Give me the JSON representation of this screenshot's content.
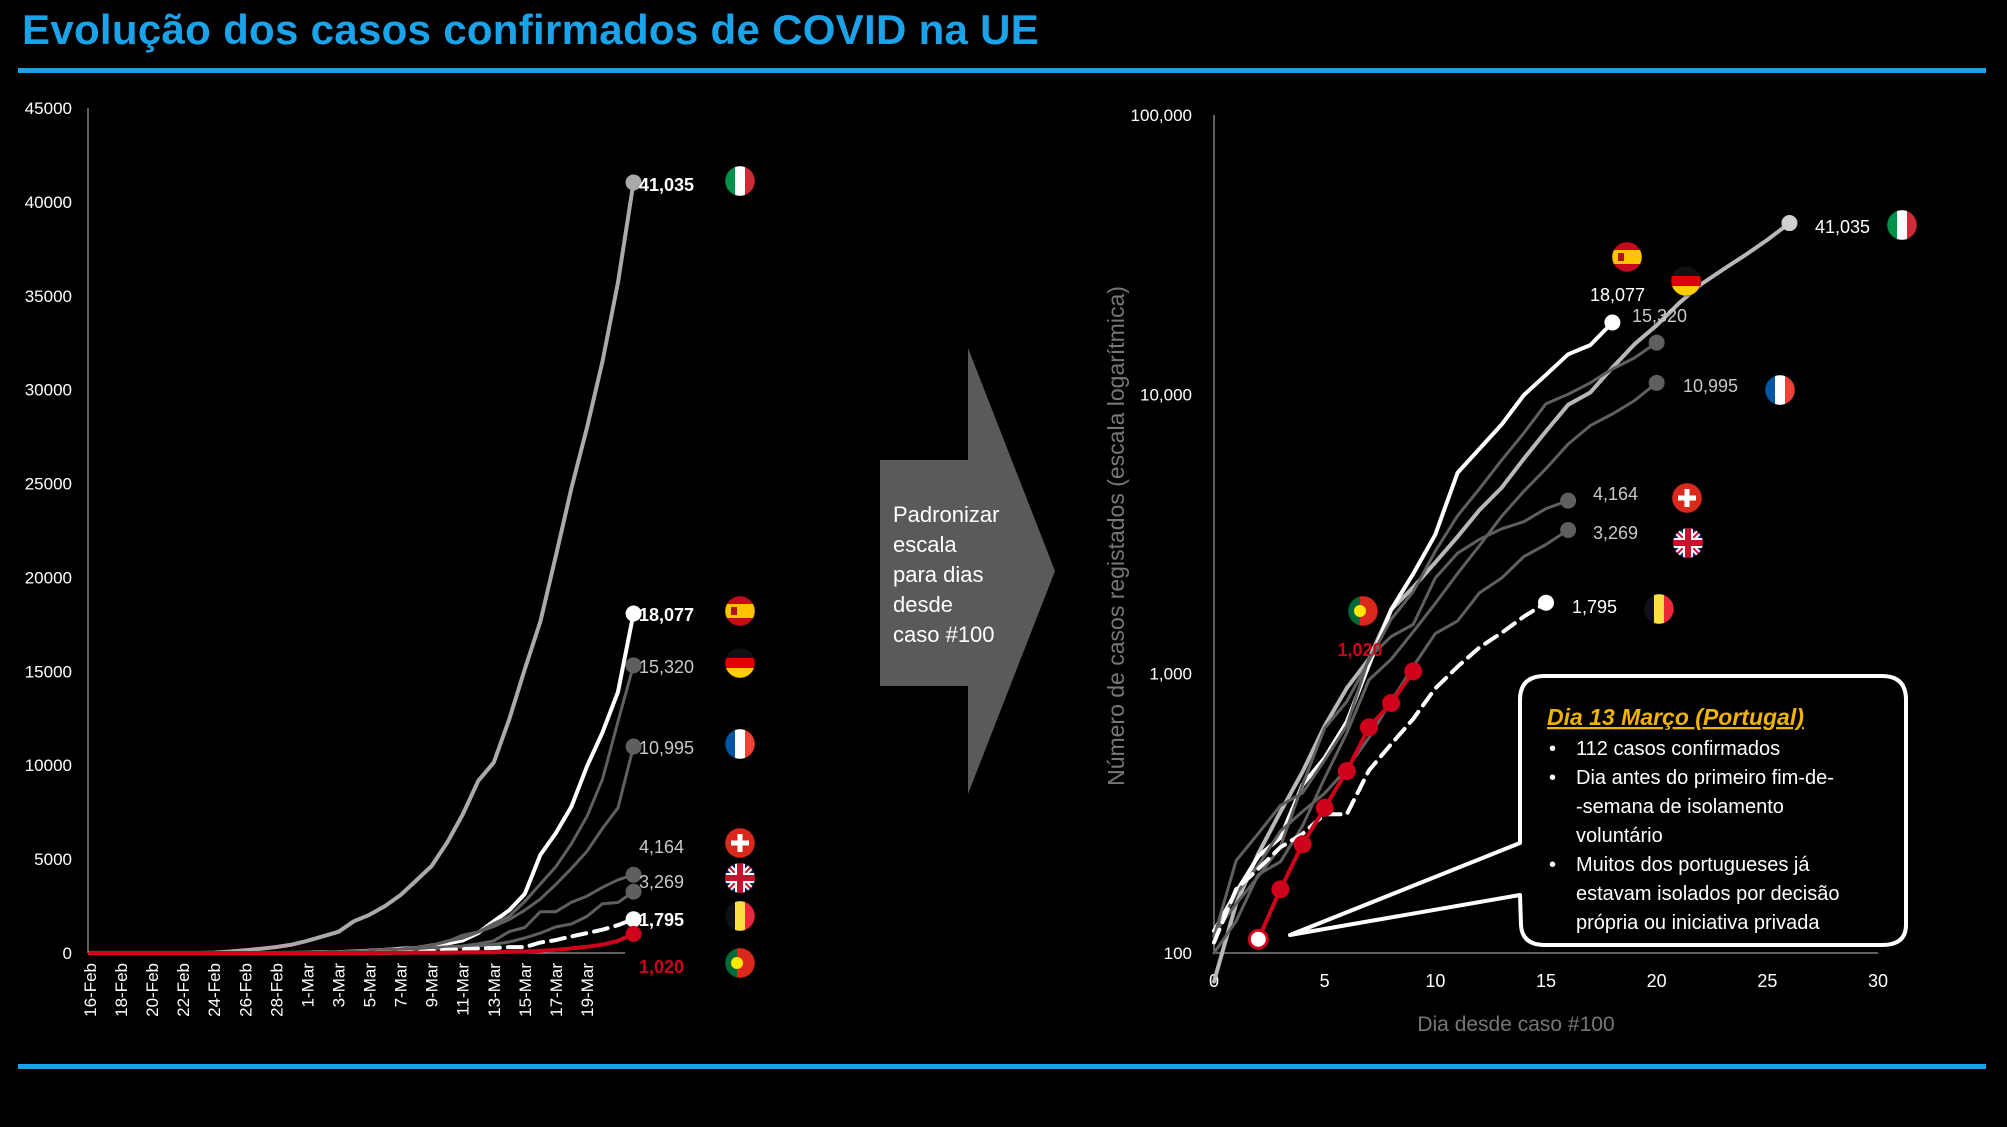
{
  "title": "Evolução dos casos confirmados de COVID na UE",
  "arrow": {
    "lines": [
      "Padronizar",
      "escala",
      "para dias",
      "desde",
      "caso #100"
    ]
  },
  "chart_data": [
    {
      "type": "line",
      "ylim": [
        0,
        45000
      ],
      "yticks": [
        "0",
        "5000",
        "10000",
        "15000",
        "20000",
        "25000",
        "30000",
        "35000",
        "40000",
        "45000"
      ],
      "xticks": [
        "16-Feb",
        "18-Feb",
        "20-Feb",
        "22-Feb",
        "24-Feb",
        "26-Feb",
        "28-Feb",
        "1-Mar",
        "3-Mar",
        "5-Mar",
        "7-Mar",
        "9-Mar",
        "11-Mar",
        "13-Mar",
        "15-Mar",
        "17-Mar",
        "19-Mar"
      ],
      "series": [
        {
          "country": "Italy",
          "flag": "italy-flag",
          "color": "#aaaaaa",
          "label": "41,035",
          "values": [
            3,
            3,
            3,
            3,
            3,
            3,
            3,
            3,
            20,
            79,
            150,
            227,
            320,
            445,
            650,
            888,
            1128,
            1694,
            2036,
            2502,
            3089,
            3858,
            4636,
            5883,
            7375,
            9172,
            10149,
            12462,
            15113,
            17660,
            21157,
            24747,
            27980,
            31506,
            35713,
            41035
          ]
        },
        {
          "country": "Spain",
          "flag": "spain-flag",
          "color": "#ffffff",
          "label": "18,077",
          "values": [
            2,
            2,
            2,
            2,
            2,
            2,
            2,
            2,
            2,
            2,
            2,
            2,
            2,
            6,
            15,
            32,
            45,
            84,
            120,
            165,
            222,
            259,
            400,
            500,
            673,
            1073,
            1695,
            2277,
            3146,
            5232,
            6391,
            7798,
            9942,
            11748,
            13910,
            18077
          ]
        },
        {
          "country": "Germany",
          "flag": "germany-flag",
          "color": "#5f5f5f",
          "label": "15,320",
          "values": [
            16,
            16,
            16,
            16,
            16,
            16,
            16,
            16,
            16,
            16,
            16,
            16,
            16,
            18,
            21,
            26,
            53,
            66,
            117,
            150,
            188,
            240,
            400,
            639,
            795,
            1112,
            1565,
            1966,
            2745,
            3675,
            4599,
            5813,
            7272,
            9257,
            12327,
            15320
          ]
        },
        {
          "country": "France",
          "flag": "france-flag",
          "color": "#5f5f5f",
          "label": "10,995",
          "values": [
            12,
            12,
            12,
            12,
            12,
            12,
            12,
            12,
            12,
            12,
            12,
            12,
            12,
            12,
            18,
            38,
            57,
            100,
            130,
            191,
            212,
            285,
            423,
            613,
            949,
            1126,
            1412,
            1784,
            2281,
            2876,
            3661,
            4499,
            5423,
            6633,
            7730,
            10995
          ]
        },
        {
          "country": "Switzerland",
          "flag": "switzerland-flag",
          "color": "#5f5f5f",
          "label": "4,164",
          "values": [
            0,
            0,
            0,
            0,
            0,
            0,
            0,
            0,
            0,
            0,
            0,
            1,
            1,
            8,
            8,
            18,
            27,
            42,
            56,
            90,
            114,
            214,
            268,
            337,
            374,
            491,
            652,
            1139,
            1359,
            2200,
            2200,
            2700,
            3028,
            3500,
            3900,
            4164
          ]
        },
        {
          "country": "United Kingdom",
          "flag": "uk-flag",
          "color": "#5f5f5f",
          "label": "3,269",
          "values": [
            9,
            9,
            9,
            9,
            9,
            9,
            9,
            9,
            9,
            9,
            9,
            13,
            13,
            15,
            20,
            23,
            36,
            40,
            51,
            85,
            115,
            163,
            206,
            273,
            321,
            373,
            456,
            590,
            797,
            1061,
            1391,
            1543,
            1950,
            2626,
            2689,
            3269
          ]
        },
        {
          "country": "Belgium",
          "flag": "belgium-flag",
          "color": "#ffffff",
          "dashed": true,
          "label": "1,795",
          "values": [
            1,
            1,
            1,
            1,
            1,
            1,
            1,
            1,
            1,
            1,
            1,
            1,
            1,
            1,
            1,
            1,
            1,
            2,
            8,
            13,
            23,
            50,
            109,
            169,
            200,
            239,
            267,
            314,
            314,
            559,
            689,
            886,
            1058,
            1243,
            1486,
            1795
          ]
        },
        {
          "country": "Portugal",
          "flag": "portugal-flag",
          "color": "#d0021b",
          "label": "1,020",
          "values": [
            0,
            0,
            0,
            0,
            0,
            0,
            0,
            0,
            0,
            0,
            0,
            0,
            0,
            0,
            0,
            0,
            0,
            0,
            2,
            4,
            6,
            9,
            13,
            21,
            30,
            39,
            41,
            59,
            78,
            112,
            169,
            245,
            331,
            448,
            642,
            1020
          ]
        }
      ]
    },
    {
      "type": "line",
      "yscale": "log",
      "ylim": [
        100,
        100000
      ],
      "xlim": [
        0,
        30
      ],
      "yticks": [
        "100",
        "1,000",
        "10,000",
        "100,000"
      ],
      "xticks": [
        "0",
        "5",
        "10",
        "15",
        "20",
        "25",
        "30"
      ],
      "xlabel": "Dia desde caso #100",
      "ylabel": "Número de casos registados (escala logarítmica)",
      "series": [
        {
          "country": "Italy",
          "flag": "italy-flag",
          "color": "#b8b8b8",
          "label": "41,035",
          "x": [
            0,
            1,
            2,
            3,
            4,
            5,
            6,
            7,
            8,
            9,
            10,
            11,
            12,
            13,
            14,
            15,
            16,
            17,
            18,
            19,
            20,
            21,
            22,
            23,
            24,
            25,
            26
          ],
          "y": [
            79,
            150,
            227,
            320,
            445,
            650,
            888,
            1128,
            1694,
            2036,
            2502,
            3089,
            3858,
            4636,
            5883,
            7375,
            9172,
            10149,
            12462,
            15113,
            17660,
            21157,
            24747,
            27980,
            31506,
            35713,
            41035
          ]
        },
        {
          "country": "Spain",
          "flag": "spain-flag",
          "color": "#ffffff",
          "label": "18,077",
          "x": [
            0,
            1,
            2,
            3,
            4,
            5,
            6,
            7,
            8,
            9,
            10,
            11,
            12,
            13,
            14,
            15,
            16,
            17,
            18
          ],
          "y": [
            120,
            165,
            222,
            259,
            400,
            500,
            673,
            1073,
            1695,
            2277,
            3146,
            5232,
            6391,
            7798,
            9942,
            11748,
            13910,
            15000,
            18077
          ]
        },
        {
          "country": "Germany",
          "flag": "germany-flag",
          "color": "#5f5f5f",
          "label": "15,320",
          "x": [
            0,
            1,
            2,
            3,
            4,
            5,
            6,
            7,
            8,
            9,
            10,
            11,
            12,
            13,
            14,
            15,
            16,
            17,
            18,
            19,
            20
          ],
          "y": [
            117,
            150,
            188,
            240,
            400,
            639,
            795,
            1112,
            1565,
            1966,
            2745,
            3675,
            4599,
            5813,
            7272,
            9257,
            10000,
            11000,
            12327,
            13500,
            15320
          ]
        },
        {
          "country": "France",
          "flag": "france-flag",
          "color": "#5f5f5f",
          "label": "10,995",
          "x": [
            0,
            1,
            2,
            3,
            4,
            5,
            6,
            7,
            8,
            9,
            10,
            11,
            12,
            13,
            14,
            15,
            16,
            17,
            18,
            19,
            20
          ],
          "y": [
            100,
            130,
            191,
            212,
            285,
            423,
            613,
            949,
            1126,
            1412,
            1784,
            2281,
            2876,
            3661,
            4499,
            5423,
            6633,
            7730,
            8500,
            9500,
            10995
          ]
        },
        {
          "country": "Switzerland",
          "flag": "switzerland-flag",
          "color": "#5f5f5f",
          "label": "4,164",
          "x": [
            0,
            1,
            2,
            3,
            4,
            5,
            6,
            7,
            8,
            9,
            10,
            11,
            12,
            13,
            14,
            15,
            16
          ],
          "y": [
            114,
            214,
            268,
            337,
            374,
            491,
            652,
            1139,
            1359,
            1500,
            2200,
            2700,
            3028,
            3300,
            3500,
            3900,
            4164
          ]
        },
        {
          "country": "United Kingdom",
          "flag": "uk-flag",
          "color": "#5f5f5f",
          "label": "3,269",
          "x": [
            0,
            1,
            2,
            3,
            4,
            5,
            6,
            7,
            8,
            9,
            10,
            11,
            12,
            13,
            14,
            15,
            16
          ],
          "y": [
            115,
            163,
            206,
            273,
            321,
            373,
            456,
            590,
            797,
            1061,
            1391,
            1543,
            1950,
            2200,
            2626,
            2900,
            3269
          ]
        },
        {
          "country": "Belgium",
          "flag": "belgium-flag",
          "color": "#ffffff",
          "dashed": true,
          "label": "1,795",
          "x": [
            0,
            1,
            2,
            3,
            4,
            5,
            6,
            7,
            8,
            9,
            10,
            11,
            12,
            13,
            14,
            15
          ],
          "y": [
            109,
            169,
            200,
            239,
            267,
            314,
            314,
            450,
            559,
            689,
            886,
            1058,
            1243,
            1400,
            1600,
            1795
          ]
        },
        {
          "country": "Portugal",
          "flag": "portugal-flag",
          "color": "#d0021b",
          "markers": true,
          "label": "1,020",
          "x": [
            2,
            3,
            4,
            5,
            6,
            7,
            8,
            9
          ],
          "y": [
            112,
            169,
            245,
            331,
            448,
            642,
            785,
            1020
          ]
        }
      ],
      "callout": {
        "title": "Dia 13 Março (Portugal)",
        "title_color": "#f0b400",
        "bullets": [
          [
            "112 casos confirmados"
          ],
          [
            "Dia antes do primeiro fim-de-",
            "-semana de isolamento",
            "voluntário"
          ],
          [
            "Muitos dos portugueses já",
            "estavam isolados por decisão",
            "própria ou iniciativa privada"
          ]
        ]
      }
    }
  ]
}
